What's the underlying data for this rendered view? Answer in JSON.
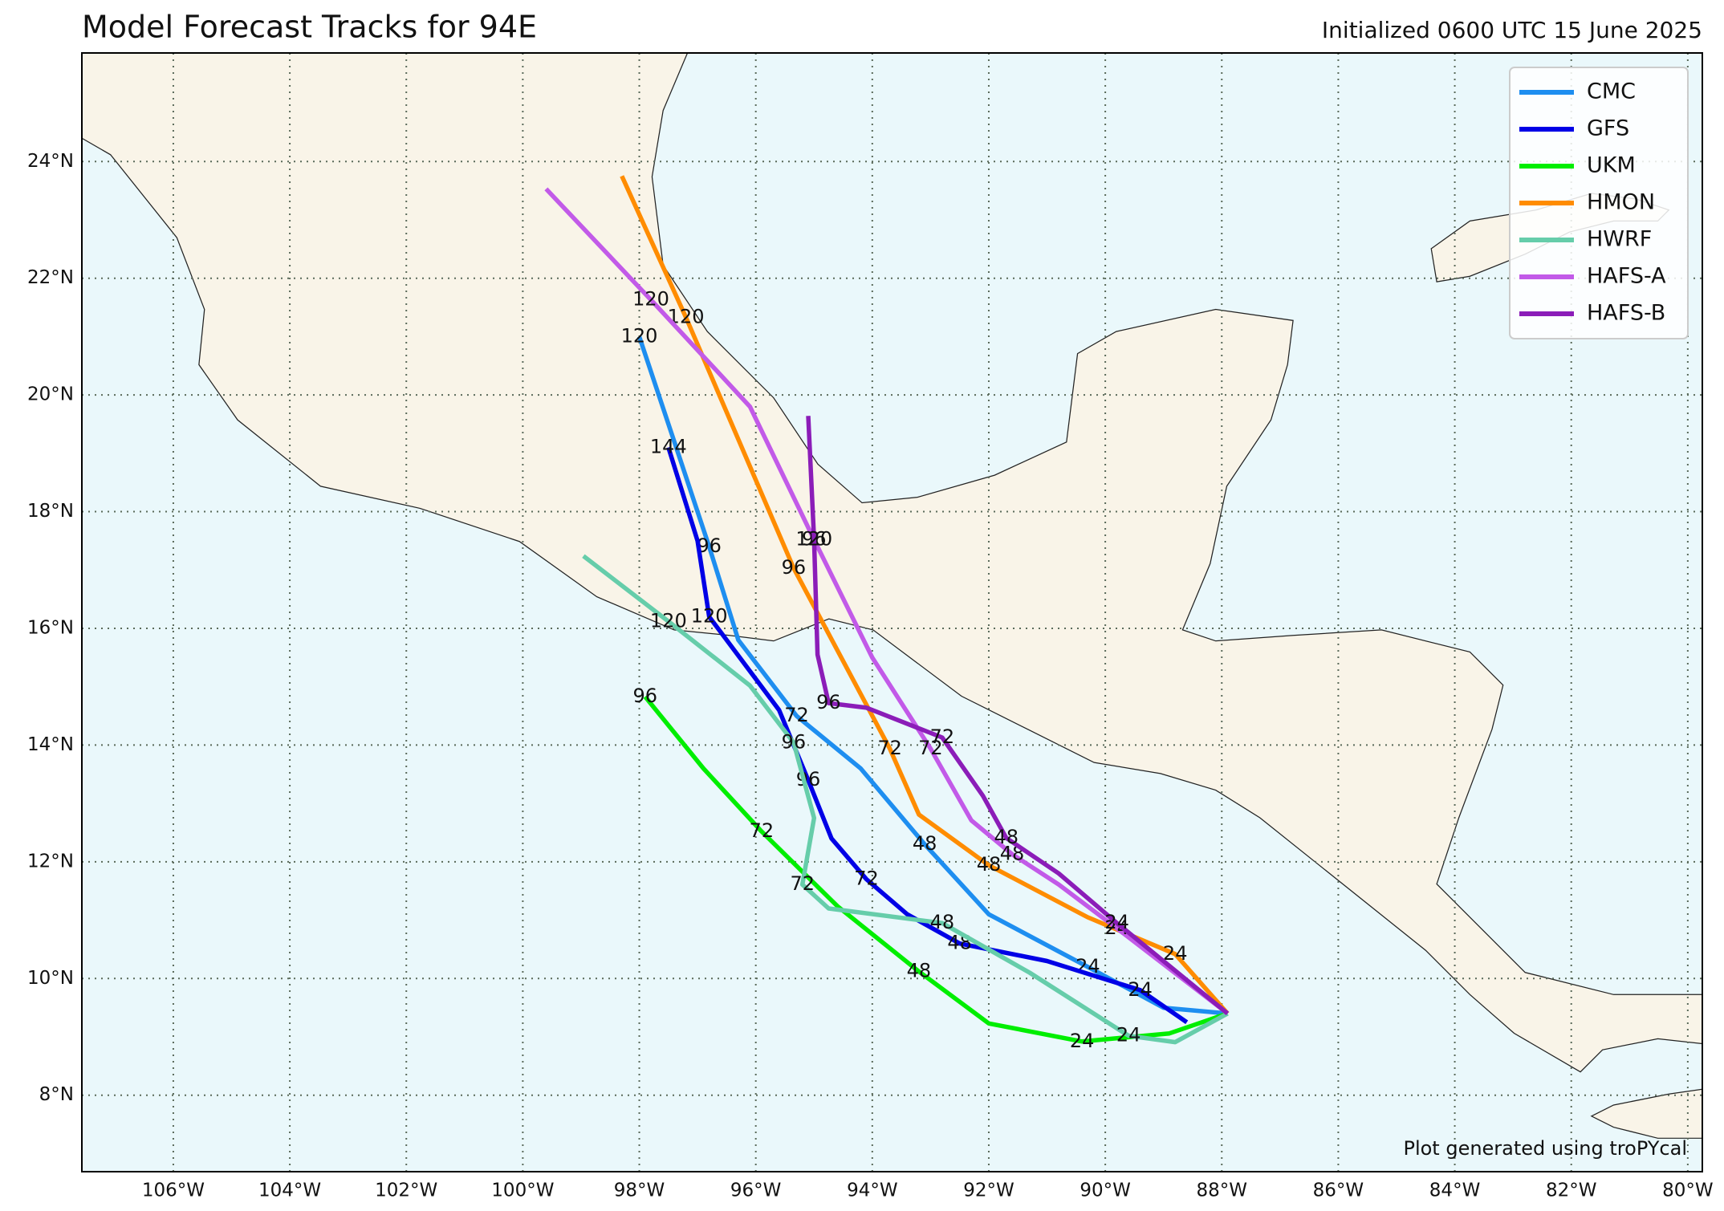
{
  "chart_data": {
    "type": "line",
    "title": "Model Forecast Tracks for 94E",
    "subtitle": "Initialized 0600 UTC 15 June 2025",
    "footnote": "Plot generated using troPYcal",
    "xlim": [
      -107.57,
      -79.75
    ],
    "ylim": [
      6.69,
      25.86
    ],
    "xticks": [
      {
        "value": -106,
        "label": "106°W"
      },
      {
        "value": -104,
        "label": "104°W"
      },
      {
        "value": -102,
        "label": "102°W"
      },
      {
        "value": -100,
        "label": "100°W"
      },
      {
        "value": -98,
        "label": "98°W"
      },
      {
        "value": -96,
        "label": "96°W"
      },
      {
        "value": -94,
        "label": "94°W"
      },
      {
        "value": -92,
        "label": "92°W"
      },
      {
        "value": -90,
        "label": "90°W"
      },
      {
        "value": -88,
        "label": "88°W"
      },
      {
        "value": -86,
        "label": "86°W"
      },
      {
        "value": -84,
        "label": "84°W"
      },
      {
        "value": -82,
        "label": "82°W"
      },
      {
        "value": -80,
        "label": "80°W"
      }
    ],
    "yticks": [
      {
        "value": 8,
        "label": "8°N"
      },
      {
        "value": 10,
        "label": "10°N"
      },
      {
        "value": 12,
        "label": "12°N"
      },
      {
        "value": 14,
        "label": "14°N"
      },
      {
        "value": 16,
        "label": "16°N"
      },
      {
        "value": 18,
        "label": "18°N"
      },
      {
        "value": 20,
        "label": "20°N"
      },
      {
        "value": 22,
        "label": "22°N"
      },
      {
        "value": 24,
        "label": "24°N"
      }
    ],
    "grid": true,
    "legend": "upper right",
    "series": [
      {
        "name": "CMC",
        "color": "#1e8ef0",
        "lon": [
          -87.9,
          -89.0,
          -90.3,
          -92.0,
          -93.1,
          -94.2,
          -95.3,
          -96.3,
          -96.8,
          -97.4,
          -98.0
        ],
        "lat": [
          9.4,
          9.5,
          10.2,
          11.1,
          12.3,
          13.6,
          14.5,
          15.8,
          17.4,
          19.2,
          21.0
        ],
        "hours": [
          null,
          null,
          24,
          null,
          48,
          null,
          72,
          null,
          96,
          null,
          120
        ]
      },
      {
        "name": "GFS",
        "color": "#0000e6",
        "lon": [
          -88.6,
          -89.4,
          -91.0,
          -92.5,
          -93.4,
          -94.1,
          -94.7,
          -95.1,
          -95.6,
          -96.8,
          -97.0,
          -97.5
        ],
        "lat": [
          9.25,
          9.8,
          10.3,
          10.6,
          11.1,
          11.7,
          12.4,
          13.4,
          14.6,
          16.2,
          17.5,
          19.1
        ],
        "hours": [
          null,
          24,
          null,
          48,
          null,
          72,
          null,
          96,
          null,
          120,
          null,
          144
        ]
      },
      {
        "name": "UKM",
        "color": "#00ee00",
        "lon": [
          -87.9,
          -88.9,
          -90.4,
          -92.0,
          -93.2,
          -94.6,
          -95.9,
          -96.9,
          -97.9
        ],
        "lat": [
          9.4,
          9.06,
          8.92,
          9.23,
          10.12,
          11.24,
          12.52,
          13.6,
          14.83
        ],
        "hours": [
          null,
          null,
          24,
          null,
          48,
          null,
          72,
          null,
          96
        ]
      },
      {
        "name": "HMON",
        "color": "#ff8c00",
        "lon": [
          -87.9,
          -88.8,
          -90.3,
          -92.0,
          -93.2,
          -93.7,
          -95.35,
          -97.2,
          -98.3
        ],
        "lat": [
          9.4,
          10.42,
          11.05,
          11.94,
          12.81,
          13.94,
          17.03,
          21.33,
          23.75
        ],
        "hours": [
          null,
          24,
          null,
          48,
          null,
          72,
          96,
          120,
          null
        ]
      },
      {
        "name": "HWRF",
        "color": "#66cdaa",
        "lon": [
          -87.9,
          -88.8,
          -89.6,
          -91.3,
          -92.8,
          -94.75,
          -95.2,
          -95.0,
          -95.35,
          -96.1,
          -97.5,
          -98.96
        ],
        "lat": [
          9.4,
          8.91,
          9.02,
          10.1,
          10.95,
          11.2,
          11.61,
          12.75,
          14.04,
          15.02,
          16.12,
          17.24
        ],
        "hours": [
          null,
          null,
          24,
          null,
          48,
          null,
          72,
          null,
          96,
          null,
          120,
          null
        ]
      },
      {
        "name": "HAFS-A",
        "color": "#c25ae8",
        "lon": [
          -87.9,
          -89.8,
          -90.8,
          -91.6,
          -92.3,
          -93.0,
          -94.0,
          -95.0,
          -96.1,
          -97.8,
          -99.6
        ],
        "lat": [
          9.4,
          10.86,
          11.61,
          12.13,
          12.71,
          13.94,
          15.5,
          17.52,
          19.8,
          21.63,
          23.53
        ],
        "hours": [
          null,
          24,
          null,
          48,
          null,
          72,
          null,
          96,
          null,
          120,
          null
        ]
      },
      {
        "name": "HAFS-B",
        "color": "#8b1db8",
        "lon": [
          -87.9,
          -89.8,
          -90.8,
          -91.7,
          -92.1,
          -92.8,
          -94.1,
          -94.75,
          -94.94,
          -95.0,
          -95.1
        ],
        "lat": [
          9.4,
          10.95,
          11.8,
          12.41,
          13.13,
          14.13,
          14.64,
          14.72,
          15.55,
          17.52,
          19.64
        ],
        "hours": [
          null,
          24,
          null,
          48,
          null,
          72,
          null,
          96,
          null,
          120,
          null
        ]
      }
    ]
  }
}
